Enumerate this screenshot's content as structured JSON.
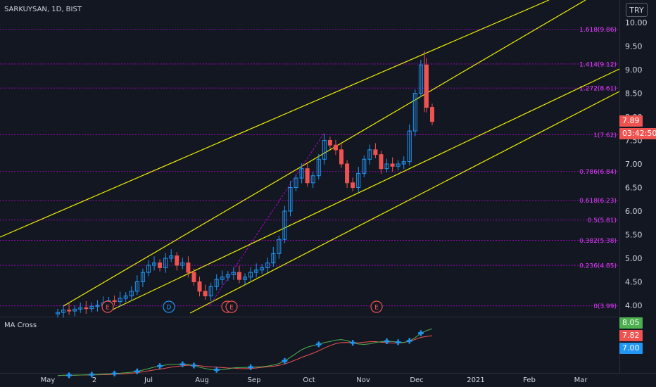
{
  "symbol_title": "SARKUYSAN, 1D, BIST",
  "currency": "TRY",
  "indicator": {
    "name": "MA Cross"
  },
  "colors": {
    "background": "#131722",
    "up": "#2196f3",
    "down": "#ef5350",
    "channel": "#f0f000",
    "fib": "#d500f9",
    "fib_text": "#e040fb",
    "fast_ma": "#4caf50",
    "slow_ma": "#ef5350",
    "axis_text": "#d1d4dc",
    "earnings_circle": "#ef5350",
    "dividend_circle": "#2196f3"
  },
  "price_tags": {
    "last_price": "7.89",
    "countdown": "03:42:50",
    "fast_ma_value": "8.05",
    "slow_ma_value": "7.82",
    "ma_level": "7.00"
  },
  "chart_data": {
    "type": "candlestick",
    "x_ticks": [
      "May",
      "2",
      "Jul",
      "Aug",
      "Sep",
      "Oct",
      "Nov",
      "Dec",
      "2021",
      "Feb",
      "Mar"
    ],
    "y_ticks": [
      "10.00",
      "9.50",
      "9.00",
      "8.50",
      "8.00",
      "7.50",
      "7.00",
      "6.50",
      "6.00",
      "5.50",
      "5.00",
      "4.50",
      "4.00"
    ],
    "ylim": [
      3.8,
      10.2
    ],
    "fib_levels": [
      {
        "label": "1.618(9.86)",
        "value": 9.86
      },
      {
        "label": "1.414(9.12)",
        "value": 9.12
      },
      {
        "label": "1.272(8.61)",
        "value": 8.61
      },
      {
        "label": "1(7.62)",
        "value": 7.62
      },
      {
        "label": "0.786(6.84)",
        "value": 6.84
      },
      {
        "label": "0.618(6.23)",
        "value": 6.23
      },
      {
        "label": "0.5(5.81)",
        "value": 5.81
      },
      {
        "label": "0.382(5.38)",
        "value": 5.38
      },
      {
        "label": "0.236(4.85)",
        "value": 4.85
      },
      {
        "label": "0(3.99)",
        "value": 3.99
      }
    ],
    "events": [
      {
        "label": "E",
        "type": "earnings"
      },
      {
        "label": "D",
        "type": "dividend"
      },
      {
        "label": "E",
        "type": "earnings"
      },
      {
        "label": "E",
        "type": "earnings"
      },
      {
        "label": "E",
        "type": "earnings"
      }
    ],
    "close_series": [
      3.85,
      3.9,
      3.88,
      3.92,
      3.95,
      3.93,
      3.98,
      4.0,
      4.05,
      4.1,
      4.08,
      4.15,
      4.2,
      4.3,
      4.5,
      4.7,
      4.85,
      4.9,
      4.8,
      5.0,
      5.05,
      4.85,
      4.9,
      4.7,
      4.5,
      4.3,
      4.2,
      4.4,
      4.55,
      4.6,
      4.65,
      4.7,
      4.55,
      4.6,
      4.7,
      4.75,
      4.8,
      4.9,
      5.1,
      5.4,
      6.0,
      6.5,
      6.7,
      6.9,
      6.6,
      6.75,
      7.1,
      7.5,
      7.4,
      7.3,
      7.0,
      6.6,
      6.5,
      6.8,
      7.1,
      7.3,
      7.2,
      6.9,
      7.0,
      6.95,
      7.0,
      7.05,
      7.7,
      8.5,
      9.1,
      8.2,
      7.9
    ]
  }
}
